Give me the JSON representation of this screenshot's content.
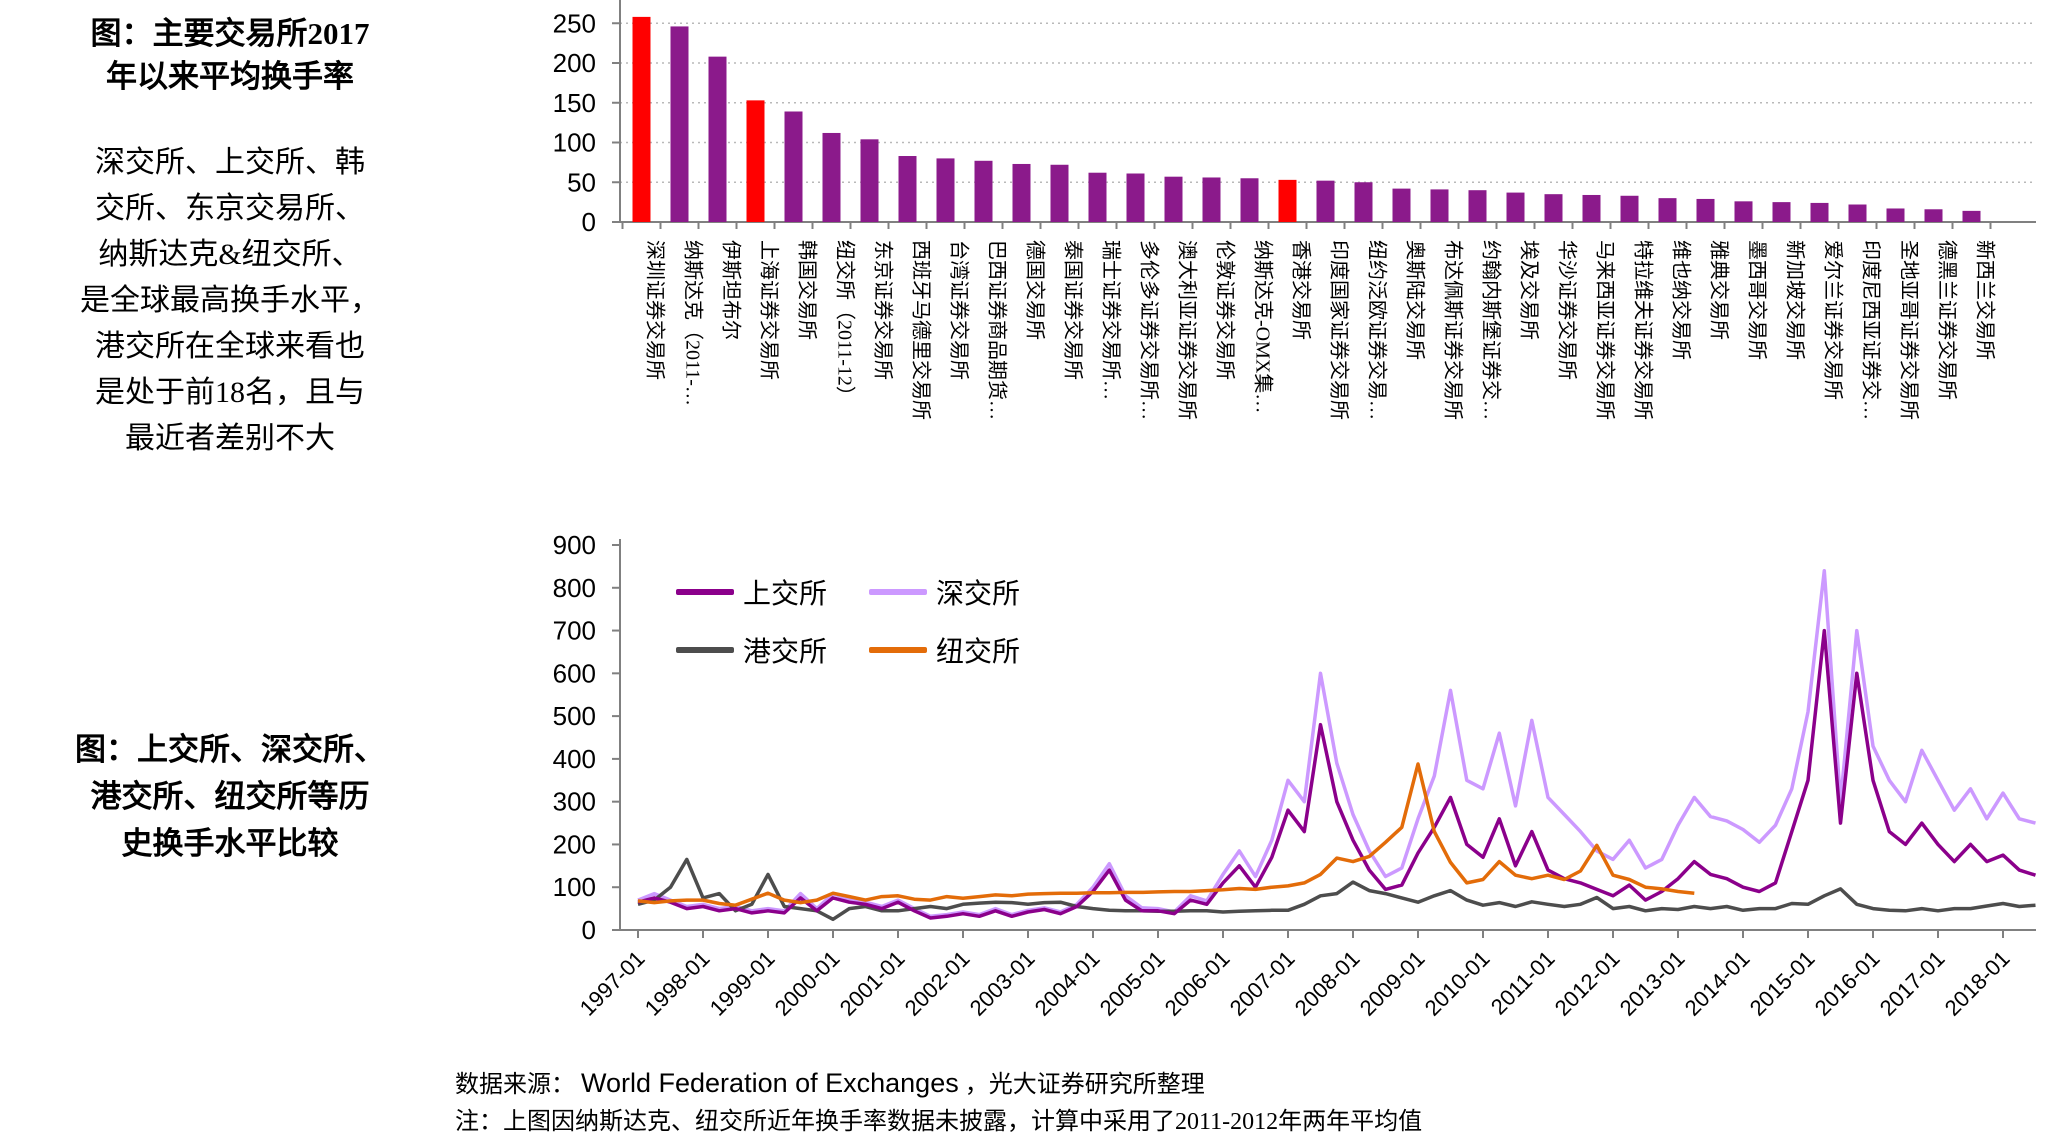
{
  "left_panel": {
    "title1": [
      "图：主要交易所2017",
      "年以来平均换手率"
    ],
    "paragraph": [
      "深交所、上交所、韩",
      "交所、东京交易所、",
      "纳斯达克&纽交所、",
      "是全球最高换手水平，",
      "港交所在全球来看也",
      "是处于前18名，且与",
      "最近者差别不大"
    ],
    "title2": [
      "图：上交所、深交所、",
      "港交所、纽交所等历",
      "史换手水平比较"
    ]
  },
  "footer": {
    "source_label": "数据来源：",
    "source_en": "World Federation of Exchanges",
    "source_tail": "，光大证券研究所整理",
    "note": "注：上图因纳斯达克、纽交所近年换手率数据未披露，计算中采用了2011-2012年两年平均值"
  },
  "chart_data": [
    {
      "type": "bar",
      "title": "主要交易所2017年以来平均换手率",
      "ylabel": "",
      "ylim": [
        0,
        280
      ],
      "yticks": [
        0,
        50,
        100,
        150,
        200,
        250
      ],
      "grid": "dotted-horizontal",
      "categories": [
        "深圳证券交易所",
        "纳斯达克（2011-…",
        "伊斯坦布尔",
        "上海证券交易所",
        "韩国交易所",
        "纽交所（2011-12）",
        "东京证券交易所",
        "西班牙马德里交易所",
        "台湾证券交易所",
        "巴西证券商品期货…",
        "德国交易所",
        "泰国证券交易所",
        "瑞士证券交易所…",
        "多伦多证券交易所…",
        "澳大利亚证券交易所",
        "伦敦证券交易所",
        "纳斯达克-OMX集…",
        "香港交易所",
        "印度国家证券交易所",
        "纽约泛欧证券交易…",
        "奥斯陆交易所",
        "布达佩斯证券交易所",
        "约翰内斯堡证券交…",
        "埃及交易所",
        "华沙证券交易所",
        "马来西亚证券交易所",
        "特拉维夫证券交易所",
        "维也纳交易所",
        "雅典交易所",
        "墨西哥交易所",
        "新加坡交易所",
        "爱尔兰证券交易所",
        "印度尼西亚证券交…",
        "圣地亚哥证券交易所",
        "德黑兰证券交易所",
        "新西兰交易所"
      ],
      "values": [
        258,
        246,
        208,
        153,
        139,
        112,
        104,
        83,
        80,
        77,
        73,
        72,
        62,
        61,
        57,
        56,
        55,
        53,
        52,
        50,
        42,
        41,
        40,
        37,
        35,
        34,
        33,
        30,
        29,
        26,
        25,
        24,
        22,
        17,
        16,
        14
      ],
      "highlight_color": "#FF0000",
      "bar_color": "#8B1A8B",
      "highlight_indices": [
        0,
        3,
        17
      ]
    },
    {
      "type": "line",
      "title": "上交所、深交所、港交所、纽交所等历史换手水平比较",
      "ylabel": "",
      "ylim": [
        0,
        900
      ],
      "yticks": [
        0,
        100,
        200,
        300,
        400,
        500,
        600,
        700,
        800,
        900
      ],
      "grid": "off",
      "legend_position": "top-left-inside",
      "x_start": 1997.0,
      "x_step": 0.25,
      "x_tick_labels": [
        "1997-01",
        "1998-01",
        "1999-01",
        "2000-01",
        "2001-01",
        "2002-01",
        "2003-01",
        "2004-01",
        "2005-01",
        "2006-01",
        "2007-01",
        "2008-01",
        "2009-01",
        "2010-01",
        "2011-01",
        "2012-01",
        "2013-01",
        "2014-01",
        "2015-01",
        "2016-01",
        "2017-01",
        "2018-01"
      ],
      "series": [
        {
          "name": "上交所",
          "color": "#8B008B",
          "values": [
            65,
            75,
            65,
            50,
            55,
            45,
            50,
            40,
            45,
            40,
            75,
            45,
            75,
            65,
            60,
            50,
            65,
            45,
            28,
            32,
            38,
            32,
            45,
            32,
            42,
            48,
            38,
            55,
            90,
            140,
            70,
            45,
            45,
            38,
            70,
            60,
            110,
            150,
            100,
            170,
            280,
            230,
            480,
            300,
            210,
            140,
            95,
            105,
            180,
            240,
            310,
            200,
            170,
            260,
            150,
            230,
            140,
            120,
            110,
            95,
            80,
            105,
            70,
            90,
            120,
            160,
            130,
            120,
            100,
            90,
            110,
            230,
            350,
            700,
            250,
            600,
            350,
            230,
            200,
            250,
            200,
            160,
            200,
            160,
            175,
            140,
            128
          ]
        },
        {
          "name": "深交所",
          "color": "#CC99FF",
          "values": [
            70,
            85,
            70,
            55,
            60,
            50,
            55,
            45,
            50,
            45,
            85,
            50,
            85,
            72,
            65,
            55,
            70,
            50,
            32,
            36,
            42,
            36,
            50,
            36,
            46,
            52,
            42,
            60,
            100,
            155,
            80,
            52,
            50,
            42,
            80,
            68,
            130,
            185,
            125,
            210,
            350,
            300,
            600,
            390,
            270,
            185,
            125,
            145,
            260,
            360,
            560,
            350,
            330,
            460,
            290,
            490,
            310,
            270,
            230,
            185,
            165,
            210,
            145,
            165,
            245,
            310,
            265,
            255,
            235,
            205,
            245,
            330,
            510,
            840,
            300,
            700,
            430,
            350,
            300,
            420,
            350,
            280,
            330,
            260,
            320,
            260,
            250
          ]
        },
        {
          "name": "港交所",
          "color": "#4D4D4D",
          "values": [
            60,
            70,
            100,
            165,
            75,
            85,
            45,
            60,
            130,
            55,
            50,
            45,
            25,
            50,
            55,
            45,
            45,
            50,
            55,
            50,
            60,
            63,
            65,
            64,
            60,
            64,
            65,
            55,
            50,
            46,
            45,
            45,
            44,
            44,
            45,
            45,
            42,
            44,
            45,
            46,
            46,
            60,
            80,
            85,
            112,
            92,
            85,
            75,
            65,
            80,
            92,
            70,
            58,
            64,
            55,
            66,
            60,
            55,
            60,
            76,
            50,
            55,
            45,
            50,
            48,
            55,
            50,
            55,
            46,
            50,
            50,
            62,
            60,
            80,
            96,
            60,
            50,
            46,
            45,
            50,
            45,
            50,
            50,
            56,
            62,
            55,
            58
          ]
        },
        {
          "name": "纽交所",
          "color": "#E36C09",
          "values": [
            68,
            64,
            68,
            70,
            70,
            62,
            58,
            72,
            86,
            70,
            64,
            70,
            86,
            78,
            70,
            78,
            80,
            72,
            70,
            78,
            74,
            78,
            82,
            80,
            84,
            85,
            86,
            86,
            87,
            87,
            88,
            88,
            89,
            90,
            90,
            92,
            94,
            97,
            95,
            100,
            103,
            110,
            130,
            168,
            160,
            172,
            205,
            240,
            388,
            230,
            158,
            110,
            118,
            160,
            128,
            120,
            128,
            118,
            138,
            198,
            128,
            118,
            100,
            96,
            90,
            86,
            null,
            null,
            null,
            null,
            null,
            null,
            null,
            null,
            null,
            null,
            null,
            null,
            null,
            null,
            null,
            null,
            null,
            null,
            null,
            null,
            null
          ]
        }
      ]
    }
  ]
}
